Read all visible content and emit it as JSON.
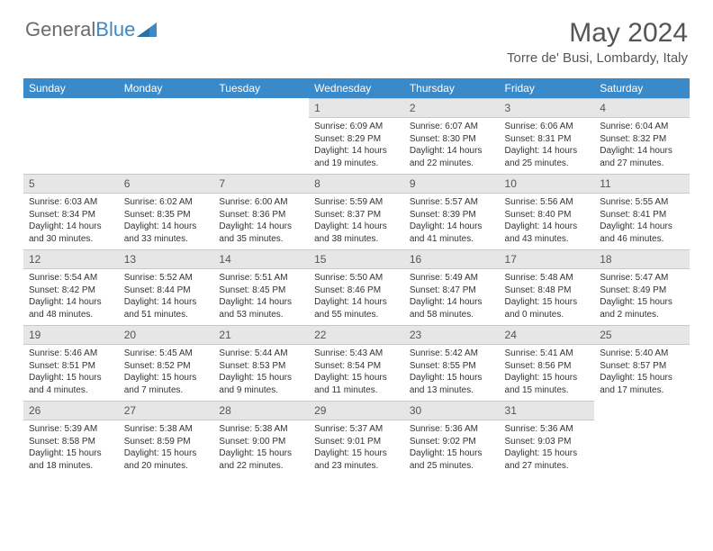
{
  "brand": {
    "part1": "General",
    "part2": "Blue"
  },
  "title": "May 2024",
  "location": "Torre de' Busi, Lombardy, Italy",
  "colors": {
    "header_bg": "#3a8ac9",
    "daynum_bg": "#e6e6e6",
    "text": "#333333",
    "title_text": "#555555",
    "logo_gray": "#6b6b6b",
    "logo_blue": "#3a8ac9",
    "border": "#c8c8c8",
    "page_bg": "#ffffff"
  },
  "typography": {
    "month_title_fontsize": 30,
    "location_fontsize": 15,
    "weekday_fontsize": 12,
    "daynum_fontsize": 12,
    "cell_fontsize": 10
  },
  "weekdays": [
    "Sunday",
    "Monday",
    "Tuesday",
    "Wednesday",
    "Thursday",
    "Friday",
    "Saturday"
  ],
  "weeks": [
    [
      null,
      null,
      null,
      {
        "n": "1",
        "sr": "6:09 AM",
        "ss": "8:29 PM",
        "dl": "14 hours and 19 minutes."
      },
      {
        "n": "2",
        "sr": "6:07 AM",
        "ss": "8:30 PM",
        "dl": "14 hours and 22 minutes."
      },
      {
        "n": "3",
        "sr": "6:06 AM",
        "ss": "8:31 PM",
        "dl": "14 hours and 25 minutes."
      },
      {
        "n": "4",
        "sr": "6:04 AM",
        "ss": "8:32 PM",
        "dl": "14 hours and 27 minutes."
      }
    ],
    [
      {
        "n": "5",
        "sr": "6:03 AM",
        "ss": "8:34 PM",
        "dl": "14 hours and 30 minutes."
      },
      {
        "n": "6",
        "sr": "6:02 AM",
        "ss": "8:35 PM",
        "dl": "14 hours and 33 minutes."
      },
      {
        "n": "7",
        "sr": "6:00 AM",
        "ss": "8:36 PM",
        "dl": "14 hours and 35 minutes."
      },
      {
        "n": "8",
        "sr": "5:59 AM",
        "ss": "8:37 PM",
        "dl": "14 hours and 38 minutes."
      },
      {
        "n": "9",
        "sr": "5:57 AM",
        "ss": "8:39 PM",
        "dl": "14 hours and 41 minutes."
      },
      {
        "n": "10",
        "sr": "5:56 AM",
        "ss": "8:40 PM",
        "dl": "14 hours and 43 minutes."
      },
      {
        "n": "11",
        "sr": "5:55 AM",
        "ss": "8:41 PM",
        "dl": "14 hours and 46 minutes."
      }
    ],
    [
      {
        "n": "12",
        "sr": "5:54 AM",
        "ss": "8:42 PM",
        "dl": "14 hours and 48 minutes."
      },
      {
        "n": "13",
        "sr": "5:52 AM",
        "ss": "8:44 PM",
        "dl": "14 hours and 51 minutes."
      },
      {
        "n": "14",
        "sr": "5:51 AM",
        "ss": "8:45 PM",
        "dl": "14 hours and 53 minutes."
      },
      {
        "n": "15",
        "sr": "5:50 AM",
        "ss": "8:46 PM",
        "dl": "14 hours and 55 minutes."
      },
      {
        "n": "16",
        "sr": "5:49 AM",
        "ss": "8:47 PM",
        "dl": "14 hours and 58 minutes."
      },
      {
        "n": "17",
        "sr": "5:48 AM",
        "ss": "8:48 PM",
        "dl": "15 hours and 0 minutes."
      },
      {
        "n": "18",
        "sr": "5:47 AM",
        "ss": "8:49 PM",
        "dl": "15 hours and 2 minutes."
      }
    ],
    [
      {
        "n": "19",
        "sr": "5:46 AM",
        "ss": "8:51 PM",
        "dl": "15 hours and 4 minutes."
      },
      {
        "n": "20",
        "sr": "5:45 AM",
        "ss": "8:52 PM",
        "dl": "15 hours and 7 minutes."
      },
      {
        "n": "21",
        "sr": "5:44 AM",
        "ss": "8:53 PM",
        "dl": "15 hours and 9 minutes."
      },
      {
        "n": "22",
        "sr": "5:43 AM",
        "ss": "8:54 PM",
        "dl": "15 hours and 11 minutes."
      },
      {
        "n": "23",
        "sr": "5:42 AM",
        "ss": "8:55 PM",
        "dl": "15 hours and 13 minutes."
      },
      {
        "n": "24",
        "sr": "5:41 AM",
        "ss": "8:56 PM",
        "dl": "15 hours and 15 minutes."
      },
      {
        "n": "25",
        "sr": "5:40 AM",
        "ss": "8:57 PM",
        "dl": "15 hours and 17 minutes."
      }
    ],
    [
      {
        "n": "26",
        "sr": "5:39 AM",
        "ss": "8:58 PM",
        "dl": "15 hours and 18 minutes."
      },
      {
        "n": "27",
        "sr": "5:38 AM",
        "ss": "8:59 PM",
        "dl": "15 hours and 20 minutes."
      },
      {
        "n": "28",
        "sr": "5:38 AM",
        "ss": "9:00 PM",
        "dl": "15 hours and 22 minutes."
      },
      {
        "n": "29",
        "sr": "5:37 AM",
        "ss": "9:01 PM",
        "dl": "15 hours and 23 minutes."
      },
      {
        "n": "30",
        "sr": "5:36 AM",
        "ss": "9:02 PM",
        "dl": "15 hours and 25 minutes."
      },
      {
        "n": "31",
        "sr": "5:36 AM",
        "ss": "9:03 PM",
        "dl": "15 hours and 27 minutes."
      },
      null
    ]
  ],
  "labels": {
    "sunrise_prefix": "Sunrise: ",
    "sunset_prefix": "Sunset: ",
    "daylight_prefix": "Daylight: "
  }
}
